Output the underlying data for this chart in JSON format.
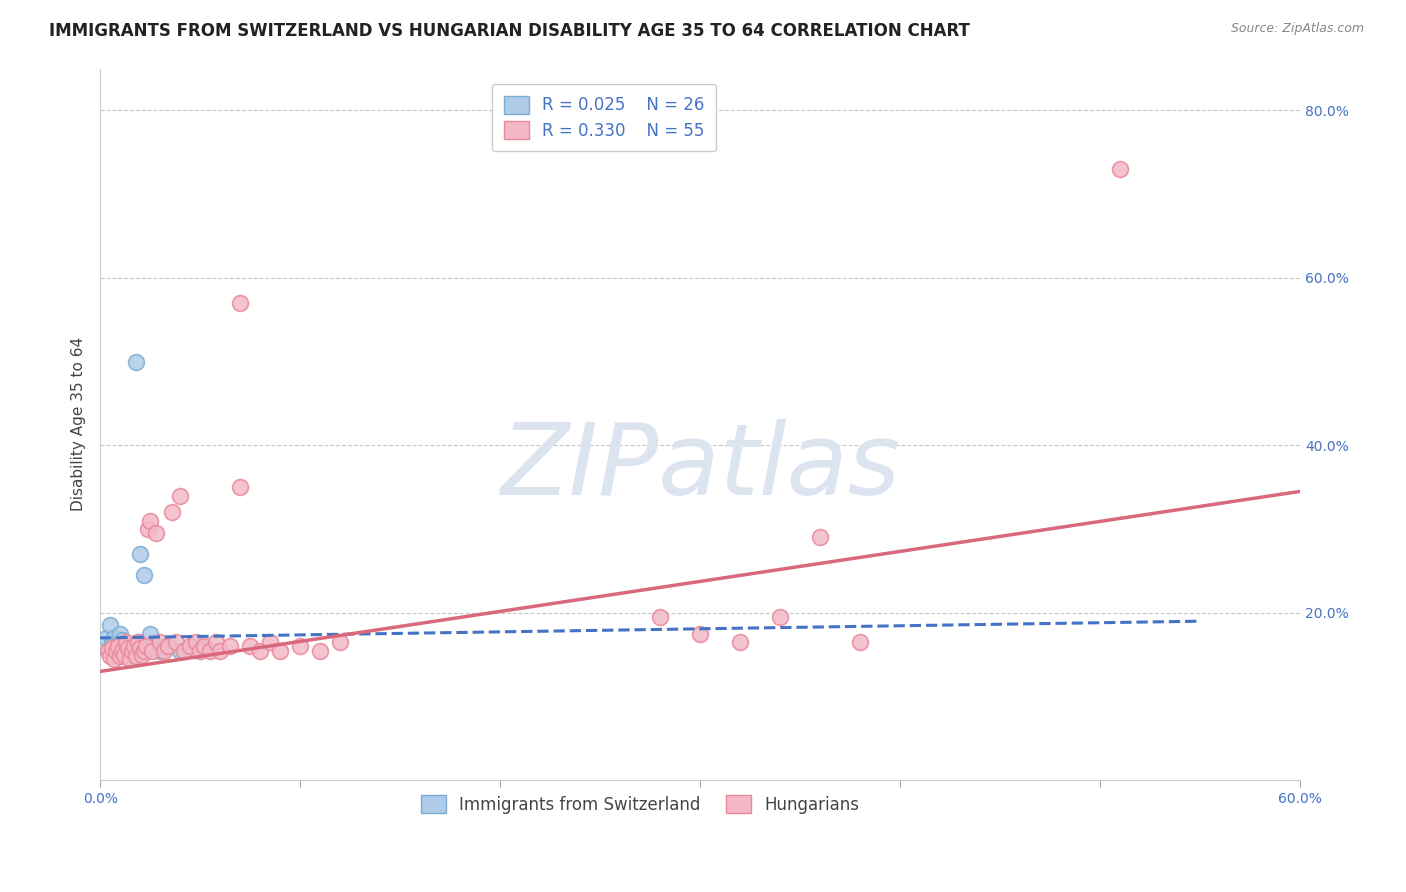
{
  "title": "IMMIGRANTS FROM SWITZERLAND VS HUNGARIAN DISABILITY AGE 35 TO 64 CORRELATION CHART",
  "source_text": "Source: ZipAtlas.com",
  "ylabel": "Disability Age 35 to 64",
  "xlim": [
    0.0,
    0.6
  ],
  "ylim": [
    0.0,
    0.85
  ],
  "swiss_scatter": [
    [
      0.003,
      0.17
    ],
    [
      0.004,
      0.155
    ],
    [
      0.005,
      0.185
    ],
    [
      0.006,
      0.165
    ],
    [
      0.007,
      0.17
    ],
    [
      0.008,
      0.16
    ],
    [
      0.009,
      0.15
    ],
    [
      0.01,
      0.175
    ],
    [
      0.011,
      0.168
    ],
    [
      0.012,
      0.155
    ],
    [
      0.013,
      0.148
    ],
    [
      0.014,
      0.162
    ],
    [
      0.015,
      0.155
    ],
    [
      0.016,
      0.145
    ],
    [
      0.017,
      0.16
    ],
    [
      0.018,
      0.158
    ],
    [
      0.019,
      0.165
    ],
    [
      0.02,
      0.27
    ],
    [
      0.022,
      0.245
    ],
    [
      0.025,
      0.175
    ],
    [
      0.027,
      0.16
    ],
    [
      0.03,
      0.155
    ],
    [
      0.032,
      0.16
    ],
    [
      0.04,
      0.155
    ],
    [
      0.05,
      0.16
    ],
    [
      0.018,
      0.5
    ]
  ],
  "swiss_trend_x": [
    0.0,
    0.55
  ],
  "swiss_trend_y": [
    0.17,
    0.19
  ],
  "hungarian_scatter": [
    [
      0.004,
      0.155
    ],
    [
      0.005,
      0.148
    ],
    [
      0.006,
      0.158
    ],
    [
      0.007,
      0.145
    ],
    [
      0.008,
      0.155
    ],
    [
      0.009,
      0.16
    ],
    [
      0.01,
      0.148
    ],
    [
      0.011,
      0.155
    ],
    [
      0.012,
      0.15
    ],
    [
      0.013,
      0.165
    ],
    [
      0.014,
      0.158
    ],
    [
      0.015,
      0.145
    ],
    [
      0.016,
      0.155
    ],
    [
      0.017,
      0.16
    ],
    [
      0.018,
      0.148
    ],
    [
      0.019,
      0.165
    ],
    [
      0.02,
      0.158
    ],
    [
      0.021,
      0.15
    ],
    [
      0.022,
      0.155
    ],
    [
      0.023,
      0.16
    ],
    [
      0.024,
      0.3
    ],
    [
      0.025,
      0.31
    ],
    [
      0.026,
      0.155
    ],
    [
      0.028,
      0.295
    ],
    [
      0.03,
      0.165
    ],
    [
      0.032,
      0.155
    ],
    [
      0.034,
      0.16
    ],
    [
      0.036,
      0.32
    ],
    [
      0.038,
      0.165
    ],
    [
      0.04,
      0.34
    ],
    [
      0.042,
      0.155
    ],
    [
      0.045,
      0.16
    ],
    [
      0.048,
      0.165
    ],
    [
      0.05,
      0.155
    ],
    [
      0.052,
      0.16
    ],
    [
      0.055,
      0.155
    ],
    [
      0.058,
      0.165
    ],
    [
      0.06,
      0.155
    ],
    [
      0.065,
      0.16
    ],
    [
      0.07,
      0.35
    ],
    [
      0.075,
      0.16
    ],
    [
      0.08,
      0.155
    ],
    [
      0.085,
      0.165
    ],
    [
      0.09,
      0.155
    ],
    [
      0.1,
      0.16
    ],
    [
      0.11,
      0.155
    ],
    [
      0.12,
      0.165
    ],
    [
      0.28,
      0.195
    ],
    [
      0.3,
      0.175
    ],
    [
      0.32,
      0.165
    ],
    [
      0.34,
      0.195
    ],
    [
      0.36,
      0.29
    ],
    [
      0.38,
      0.165
    ],
    [
      0.51,
      0.73
    ],
    [
      0.07,
      0.57
    ]
  ],
  "hungarian_trend_x": [
    0.0,
    0.6
  ],
  "hungarian_trend_y": [
    0.13,
    0.345
  ],
  "swiss_color": "#aecce8",
  "swiss_edge_color": "#7badd4",
  "hungarian_color": "#f4b8c8",
  "hungarian_edge_color": "#e88898",
  "background_color": "#ffffff",
  "grid_color": "#c8c8c8",
  "watermark_text": "ZIPatlas",
  "watermark_color": "#dce4f0",
  "title_fontsize": 12,
  "axis_label_fontsize": 11,
  "tick_fontsize": 10,
  "legend_fontsize": 12
}
